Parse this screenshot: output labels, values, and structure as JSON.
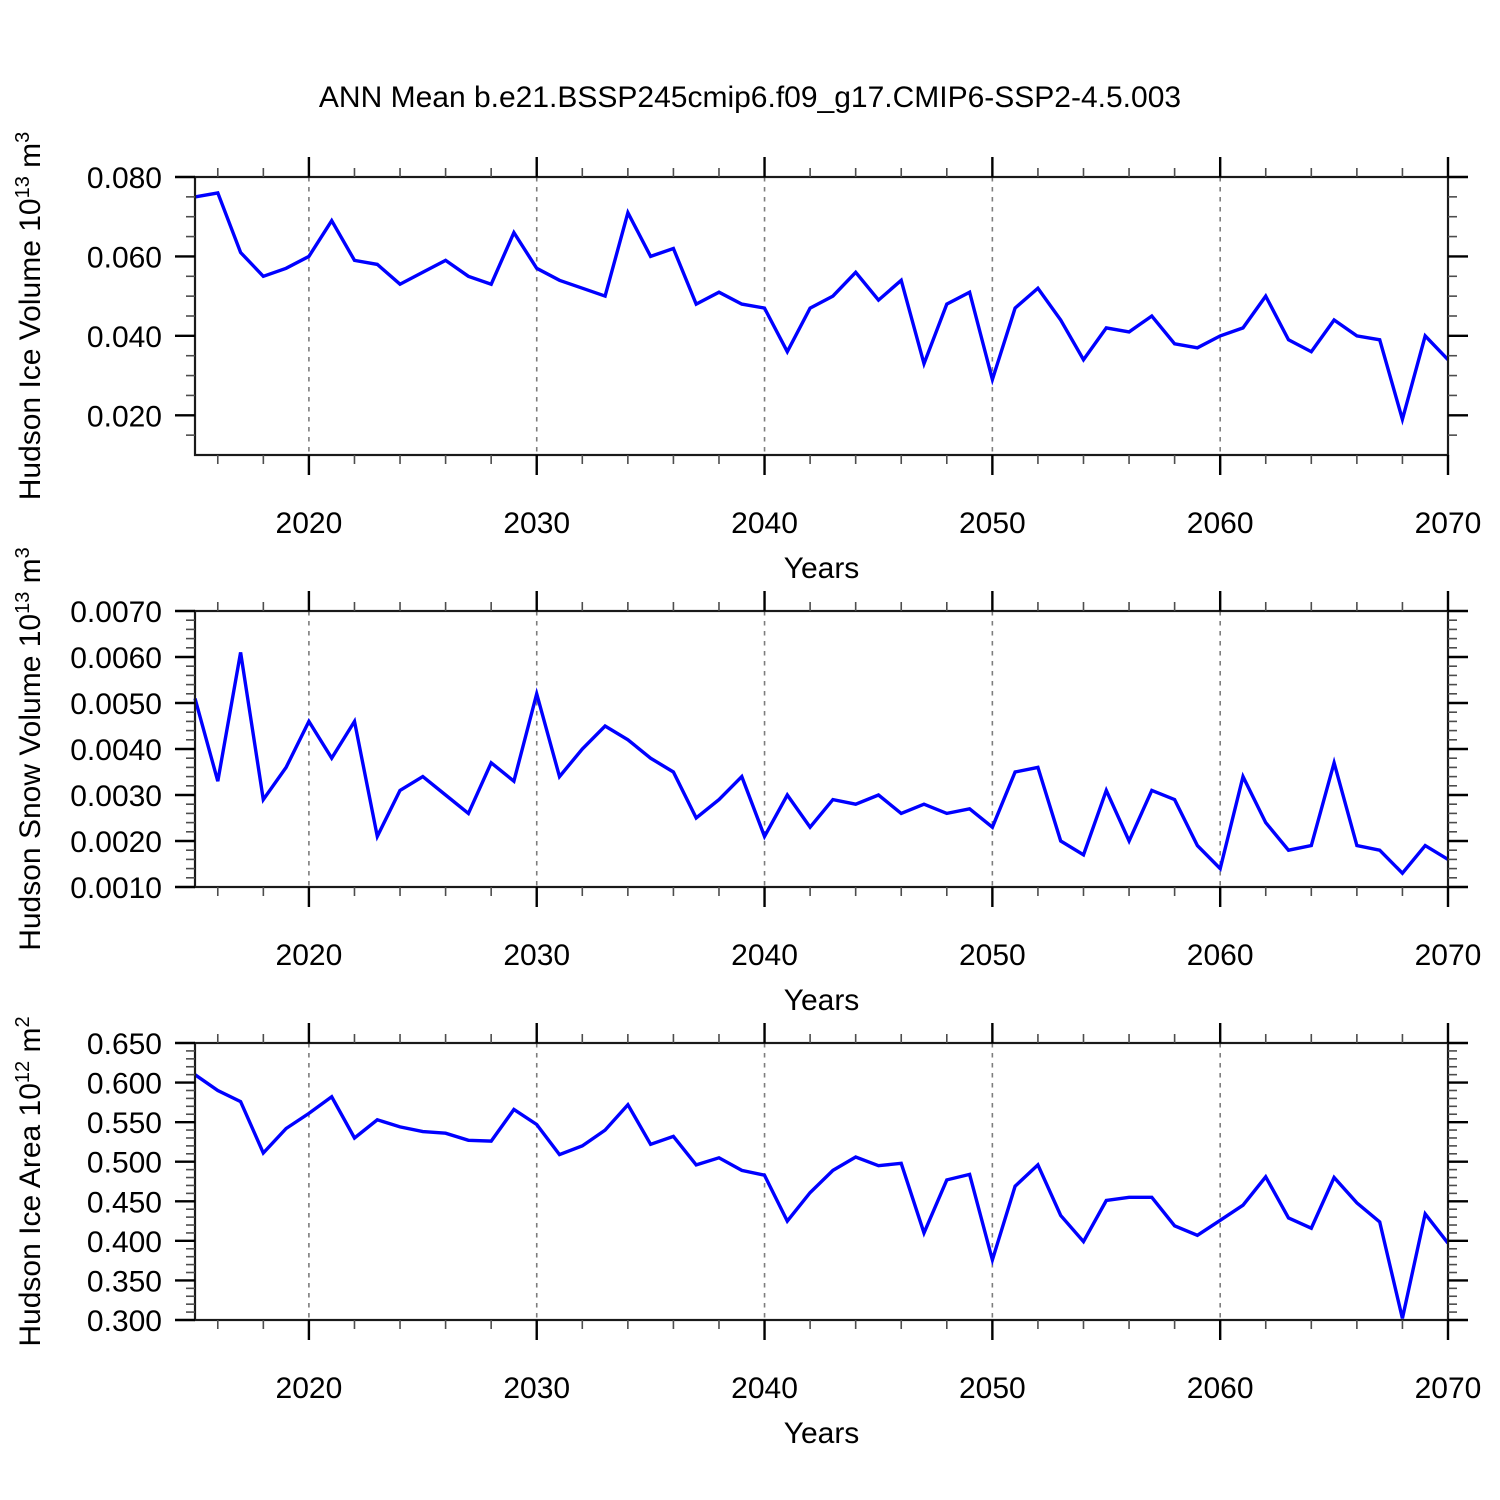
{
  "title": "ANN Mean b.e21.BSSP245cmip6.f09_g17.CMIP6-SSP2-4.5.003",
  "colors": {
    "line": "#0000ff",
    "frame": "#1a1a1a",
    "major_tick": "#000000",
    "minor_tick": "#4d4d4d",
    "grid": "#7d7d7d",
    "background": "#ffffff"
  },
  "chart_data": {
    "type": "line",
    "title": "ANN Mean b.e21.BSSP245cmip6.f09_g17.CMIP6-SSP2-4.5.003",
    "xlabel": "Years",
    "legend": "none",
    "grid": "vertical-dashed-at-decades",
    "x_range": [
      2015,
      2070
    ],
    "x_major_ticks": [
      2020,
      2030,
      2040,
      2050,
      2060,
      2070
    ],
    "x_major_labels": [
      "2020",
      "2030",
      "2040",
      "2050",
      "2060",
      "2070"
    ],
    "x_gridlines": [
      2020,
      2030,
      2040,
      2050,
      2060
    ],
    "x_minor_step_years": 2,
    "x": [
      2015,
      2016,
      2017,
      2018,
      2019,
      2020,
      2021,
      2022,
      2023,
      2024,
      2025,
      2026,
      2027,
      2028,
      2029,
      2030,
      2031,
      2032,
      2033,
      2034,
      2035,
      2036,
      2037,
      2038,
      2039,
      2040,
      2041,
      2042,
      2043,
      2044,
      2045,
      2046,
      2047,
      2048,
      2049,
      2050,
      2051,
      2052,
      2053,
      2054,
      2055,
      2056,
      2057,
      2058,
      2059,
      2060,
      2061,
      2062,
      2063,
      2064,
      2065,
      2066,
      2067,
      2068,
      2069,
      2070
    ],
    "panels": [
      {
        "id": "ice-volume",
        "ylabel_text": "Hudson Ice Volume 10^13 m^3",
        "ylabel_parts": [
          {
            "t": "Hudson Ice Volume 10"
          },
          {
            "t": "13",
            "sup": true
          },
          {
            "t": " m"
          },
          {
            "t": "3",
            "sup": true
          }
        ],
        "ylim": [
          0.01,
          0.08
        ],
        "yticks": [
          {
            "v": 0.08,
            "label": "0.080"
          },
          {
            "v": 0.06,
            "label": "0.060"
          },
          {
            "v": 0.04,
            "label": "0.040"
          },
          {
            "v": 0.02,
            "label": "0.020"
          }
        ],
        "y_minor_step": 0.005,
        "values": [
          0.075,
          0.076,
          0.061,
          0.055,
          0.057,
          0.06,
          0.069,
          0.059,
          0.058,
          0.053,
          0.056,
          0.059,
          0.055,
          0.053,
          0.066,
          0.057,
          0.054,
          0.052,
          0.05,
          0.071,
          0.06,
          0.062,
          0.048,
          0.051,
          0.048,
          0.047,
          0.036,
          0.047,
          0.05,
          0.056,
          0.049,
          0.054,
          0.033,
          0.048,
          0.051,
          0.029,
          0.047,
          0.052,
          0.044,
          0.034,
          0.042,
          0.041,
          0.045,
          0.038,
          0.037,
          0.04,
          0.042,
          0.05,
          0.039,
          0.036,
          0.044,
          0.04,
          0.039,
          0.019,
          0.04,
          0.034
        ]
      },
      {
        "id": "snow-volume",
        "ylabel_text": "Hudson Snow Volume 10^13 m^3",
        "ylabel_parts": [
          {
            "t": "Hudson Snow Volume 10"
          },
          {
            "t": "13",
            "sup": true
          },
          {
            "t": " m"
          },
          {
            "t": "3",
            "sup": true
          }
        ],
        "ylim": [
          0.001,
          0.007
        ],
        "yticks": [
          {
            "v": 0.007,
            "label": "0.0070"
          },
          {
            "v": 0.006,
            "label": "0.0060"
          },
          {
            "v": 0.005,
            "label": "0.0050"
          },
          {
            "v": 0.004,
            "label": "0.0040"
          },
          {
            "v": 0.003,
            "label": "0.0030"
          },
          {
            "v": 0.002,
            "label": "0.0020"
          },
          {
            "v": 0.001,
            "label": "0.0010"
          }
        ],
        "y_minor_step": 0.0002,
        "values": [
          0.0051,
          0.0033,
          0.0061,
          0.0029,
          0.0036,
          0.0046,
          0.0038,
          0.0046,
          0.0021,
          0.0031,
          0.0034,
          0.003,
          0.0026,
          0.0037,
          0.0033,
          0.0052,
          0.0034,
          0.004,
          0.0045,
          0.0042,
          0.0038,
          0.0035,
          0.0025,
          0.0029,
          0.0034,
          0.0021,
          0.003,
          0.0023,
          0.0029,
          0.0028,
          0.003,
          0.0026,
          0.0028,
          0.0026,
          0.0027,
          0.0023,
          0.0035,
          0.0036,
          0.002,
          0.0017,
          0.0031,
          0.002,
          0.0031,
          0.0029,
          0.0019,
          0.0014,
          0.0034,
          0.0024,
          0.0018,
          0.0019,
          0.0037,
          0.0019,
          0.0018,
          0.0013,
          0.0019,
          0.0016
        ]
      },
      {
        "id": "ice-area",
        "ylabel_text": "Hudson Ice Area 10^12 m^2",
        "ylabel_parts": [
          {
            "t": "Hudson Ice Area 10"
          },
          {
            "t": "12",
            "sup": true
          },
          {
            "t": " m"
          },
          {
            "t": "2",
            "sup": true
          }
        ],
        "ylim": [
          0.3,
          0.65
        ],
        "yticks": [
          {
            "v": 0.65,
            "label": "0.650"
          },
          {
            "v": 0.6,
            "label": "0.600"
          },
          {
            "v": 0.55,
            "label": "0.550"
          },
          {
            "v": 0.5,
            "label": "0.500"
          },
          {
            "v": 0.45,
            "label": "0.450"
          },
          {
            "v": 0.4,
            "label": "0.400"
          },
          {
            "v": 0.35,
            "label": "0.350"
          },
          {
            "v": 0.3,
            "label": "0.300"
          }
        ],
        "y_minor_step": 0.01,
        "values": [
          0.61,
          0.59,
          0.576,
          0.511,
          0.542,
          0.561,
          0.582,
          0.53,
          0.553,
          0.544,
          0.538,
          0.536,
          0.527,
          0.526,
          0.566,
          0.547,
          0.509,
          0.52,
          0.54,
          0.572,
          0.522,
          0.532,
          0.496,
          0.505,
          0.489,
          0.483,
          0.425,
          0.461,
          0.489,
          0.506,
          0.495,
          0.498,
          0.41,
          0.477,
          0.484,
          0.376,
          0.469,
          0.496,
          0.432,
          0.399,
          0.451,
          0.455,
          0.455,
          0.419,
          0.407,
          0.426,
          0.445,
          0.481,
          0.429,
          0.416,
          0.48,
          0.448,
          0.424,
          0.302,
          0.434,
          0.397
        ]
      }
    ]
  }
}
